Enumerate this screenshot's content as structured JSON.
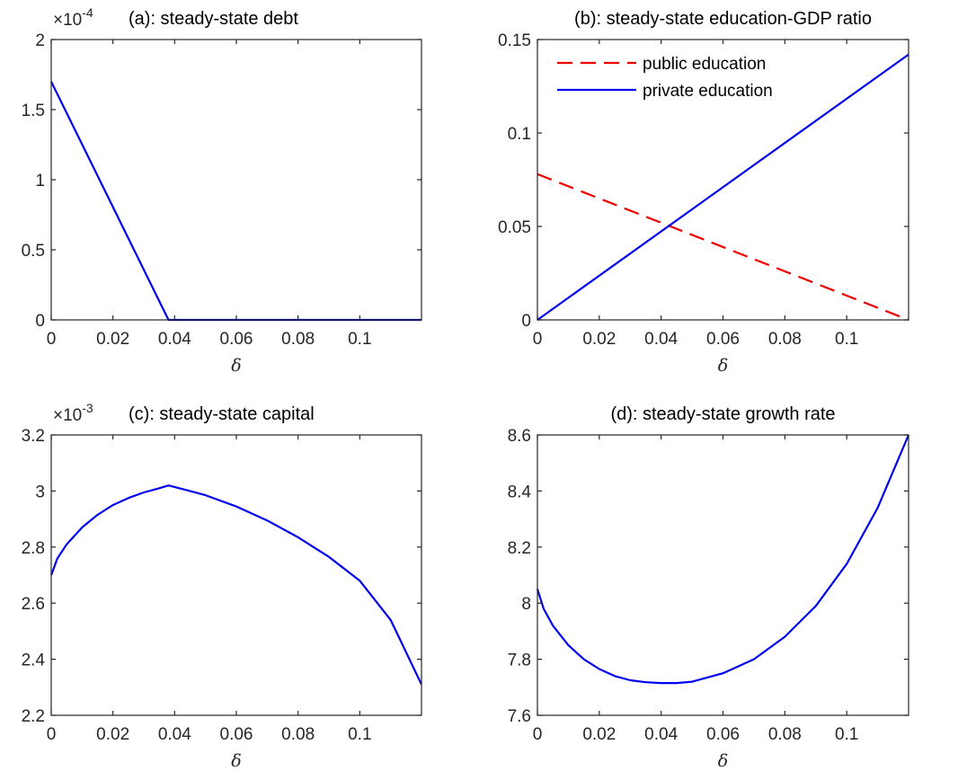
{
  "chart_data": [
    {
      "type": "line",
      "title": "(a): steady-state debt",
      "xlabel": "δ",
      "ylabel": "",
      "y_exponent_label": "×10-4",
      "xlim": [
        0,
        0.12
      ],
      "ylim": [
        0,
        2
      ],
      "xticks": [
        "0",
        "0.02",
        "0.04",
        "0.06",
        "0.08",
        "0.1"
      ],
      "yticks": [
        "0",
        "0.5",
        "1",
        "1.5",
        "2"
      ],
      "legend": null,
      "series": [
        {
          "color": "#0000ee",
          "dash": "solid",
          "x": [
            0,
            0.038,
            0.12
          ],
          "y": [
            1.7,
            0,
            0
          ]
        }
      ]
    },
    {
      "type": "line",
      "title": "(b): steady-state education-GDP ratio",
      "xlabel": "δ",
      "ylabel": "",
      "xlim": [
        0,
        0.12
      ],
      "ylim": [
        0,
        0.15
      ],
      "xticks": [
        "0",
        "0.02",
        "0.04",
        "0.06",
        "0.08",
        "0.1"
      ],
      "yticks": [
        "0",
        "0.05",
        "0.1",
        "0.15"
      ],
      "legend": "top-left",
      "series": [
        {
          "name": "public education",
          "color": "#ee0000",
          "dash": "dashed",
          "x": [
            0,
            0.12
          ],
          "y": [
            0.078,
            0
          ]
        },
        {
          "name": "private education",
          "color": "#0000ee",
          "dash": "solid",
          "x": [
            0,
            0.12
          ],
          "y": [
            0,
            0.142
          ]
        }
      ]
    },
    {
      "type": "line",
      "title": "(c): steady-state capital",
      "xlabel": "δ",
      "ylabel": "",
      "y_exponent_label": "×10-3",
      "xlim": [
        0,
        0.12
      ],
      "ylim": [
        2.2,
        3.2
      ],
      "xticks": [
        "0",
        "0.02",
        "0.04",
        "0.06",
        "0.08",
        "0.1"
      ],
      "yticks": [
        "2.2",
        "2.4",
        "2.6",
        "2.8",
        "3",
        "3.2"
      ],
      "legend": null,
      "series": [
        {
          "color": "#0000ee",
          "dash": "solid",
          "x": [
            0,
            0.002,
            0.005,
            0.01,
            0.015,
            0.02,
            0.025,
            0.03,
            0.035,
            0.038,
            0.045,
            0.05,
            0.06,
            0.07,
            0.08,
            0.09,
            0.1,
            0.11,
            0.12
          ],
          "y": [
            2.7,
            2.76,
            2.81,
            2.87,
            2.915,
            2.95,
            2.975,
            2.995,
            3.01,
            3.02,
            3.0,
            2.985,
            2.945,
            2.895,
            2.835,
            2.765,
            2.68,
            2.54,
            2.31
          ]
        }
      ]
    },
    {
      "type": "line",
      "title": "(d): steady-state growth rate",
      "xlabel": "δ",
      "ylabel": "",
      "xlim": [
        0,
        0.12
      ],
      "ylim": [
        7.6,
        8.6
      ],
      "xticks": [
        "0",
        "0.02",
        "0.04",
        "0.06",
        "0.08",
        "0.1"
      ],
      "yticks": [
        "7.6",
        "7.8",
        "8",
        "8.2",
        "8.4",
        "8.6"
      ],
      "legend": null,
      "series": [
        {
          "color": "#0000ee",
          "dash": "solid",
          "x": [
            0,
            0.002,
            0.005,
            0.01,
            0.015,
            0.02,
            0.025,
            0.03,
            0.035,
            0.04,
            0.045,
            0.05,
            0.06,
            0.07,
            0.08,
            0.09,
            0.1,
            0.11,
            0.12
          ],
          "y": [
            8.05,
            7.98,
            7.92,
            7.85,
            7.8,
            7.765,
            7.74,
            7.725,
            7.718,
            7.715,
            7.715,
            7.72,
            7.75,
            7.8,
            7.88,
            7.99,
            8.14,
            8.34,
            8.6
          ]
        }
      ]
    }
  ]
}
